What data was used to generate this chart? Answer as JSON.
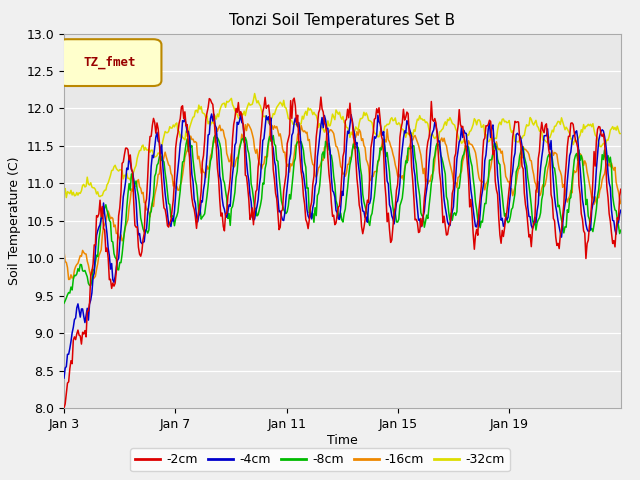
{
  "title": "Tonzi Soil Temperatures Set B",
  "xlabel": "Time",
  "ylabel": "Soil Temperature (C)",
  "ylim": [
    8.0,
    13.0
  ],
  "yticks": [
    8.0,
    8.5,
    9.0,
    9.5,
    10.0,
    10.5,
    11.0,
    11.5,
    12.0,
    12.5,
    13.0
  ],
  "xtick_positions": [
    0,
    4,
    8,
    12,
    16
  ],
  "xtick_labels": [
    "Jan 3",
    "Jan 7",
    "Jan 11",
    "Jan 15",
    "Jan 19"
  ],
  "colors": {
    "-2cm": "#dd0000",
    "-4cm": "#0000cc",
    "-8cm": "#00bb00",
    "-16cm": "#ee8800",
    "-32cm": "#dddd00"
  },
  "legend_label": "TZ_fmet",
  "legend_bg": "#ffffcc",
  "legend_border": "#bb8800",
  "fig_bg": "#f0f0f0",
  "ax_bg": "#e8e8e8"
}
